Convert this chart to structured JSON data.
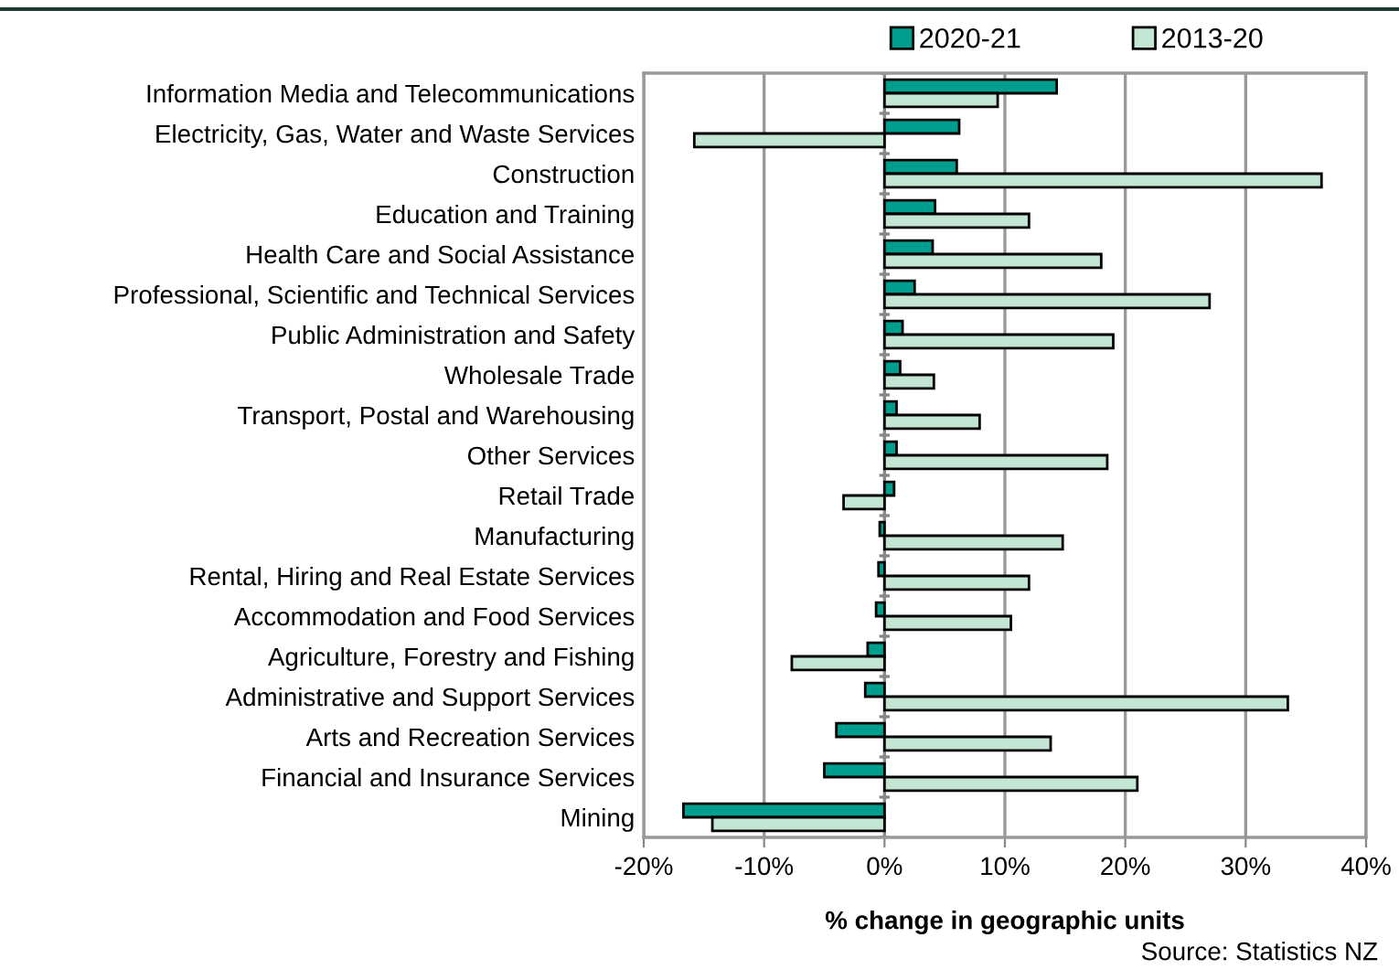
{
  "chart_data": {
    "type": "bar",
    "orientation": "horizontal",
    "xlabel": "% change in geographic units",
    "categories": [
      "Information Media and Telecommunications",
      "Electricity, Gas, Water and Waste Services",
      "Construction",
      "Education and Training",
      "Health Care and Social Assistance",
      "Professional, Scientific and Technical Services",
      "Public Administration and Safety",
      "Wholesale Trade",
      "Transport, Postal and Warehousing",
      "Other Services",
      "Retail Trade",
      "Manufacturing",
      "Rental, Hiring and Real Estate Services",
      "Accommodation and Food Services",
      "Agriculture, Forestry and Fishing",
      "Administrative and Support Services",
      "Arts and Recreation Services",
      "Financial and Insurance Services",
      "Mining"
    ],
    "series": [
      {
        "name": "2020-21",
        "color": "#009e8e",
        "values": [
          14.3,
          6.2,
          6.0,
          4.2,
          4.0,
          2.5,
          1.5,
          1.3,
          1.0,
          1.0,
          0.8,
          -0.4,
          -0.5,
          -0.7,
          -1.4,
          -1.6,
          -4.0,
          -5.0,
          -16.7
        ]
      },
      {
        "name": "2013-20",
        "color": "#c2e6d3",
        "values": [
          9.4,
          -15.8,
          36.3,
          12.0,
          18.0,
          27.0,
          19.0,
          4.1,
          7.9,
          18.5,
          -3.4,
          14.8,
          12.0,
          10.5,
          -7.7,
          33.5,
          13.8,
          21.0,
          -14.3
        ]
      }
    ],
    "xlim": [
      -20,
      40
    ],
    "xticks": [
      {
        "value": -20,
        "label": "-20%"
      },
      {
        "value": -10,
        "label": "-10%"
      },
      {
        "value": 0,
        "label": "0%"
      },
      {
        "value": 10,
        "label": "10%"
      },
      {
        "value": 20,
        "label": "20%"
      },
      {
        "value": 30,
        "label": "30%"
      },
      {
        "value": 40,
        "label": "40%"
      }
    ],
    "grid": "x",
    "legend": "top",
    "annotations": [
      "Source: Statistics NZ"
    ]
  }
}
